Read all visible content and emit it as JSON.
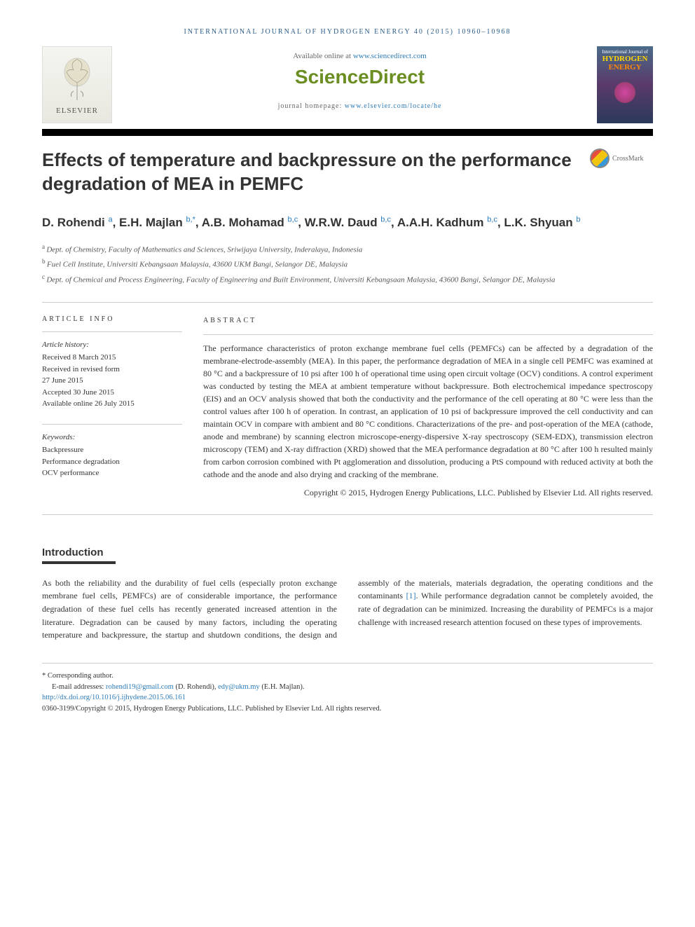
{
  "journal_header": "INTERNATIONAL JOURNAL OF HYDROGEN ENERGY 40 (2015) 10960–10968",
  "banner": {
    "available_prefix": "Available online at ",
    "available_url": "www.sciencedirect.com",
    "sciencedirect": "ScienceDirect",
    "homepage_prefix": "journal homepage: ",
    "homepage_url": "www.elsevier.com/locate/he",
    "elsevier_label": "ELSEVIER"
  },
  "cover": {
    "line1": "International Journal of",
    "line2": "HYDROGEN",
    "line3": "ENERGY"
  },
  "title": "Effects of temperature and backpressure on the performance degradation of MEA in PEMFC",
  "crossmark": "CrossMark",
  "authors_html_parts": [
    {
      "name": "D. Rohendi",
      "sup": "a"
    },
    {
      "name": "E.H. Majlan",
      "sup": "b,*"
    },
    {
      "name": "A.B. Mohamad",
      "sup": "b,c"
    },
    {
      "name": "W.R.W. Daud",
      "sup": "b,c"
    },
    {
      "name": "A.A.H. Kadhum",
      "sup": "b,c"
    },
    {
      "name": "L.K. Shyuan",
      "sup": "b"
    }
  ],
  "affiliations": [
    {
      "sup": "a",
      "text": "Dept. of Chemistry, Faculty of Mathematics and Sciences, Sriwijaya University, Inderalaya, Indonesia"
    },
    {
      "sup": "b",
      "text": "Fuel Cell Institute, Universiti Kebangsaan Malaysia, 43600 UKM Bangi, Selangor DE, Malaysia"
    },
    {
      "sup": "c",
      "text": "Dept. of Chemical and Process Engineering, Faculty of Engineering and Built Environment, Universiti Kebangsaan Malaysia, 43600 Bangi, Selangor DE, Malaysia"
    }
  ],
  "article_info": {
    "heading": "ARTICLE INFO",
    "history_label": "Article history:",
    "history": [
      "Received 8 March 2015",
      "Received in revised form",
      "27 June 2015",
      "Accepted 30 June 2015",
      "Available online 26 July 2015"
    ],
    "keywords_label": "Keywords:",
    "keywords": [
      "Backpressure",
      "Performance degradation",
      "OCV performance"
    ]
  },
  "abstract": {
    "heading": "ABSTRACT",
    "text": "The performance characteristics of proton exchange membrane fuel cells (PEMFCs) can be affected by a degradation of the membrane-electrode-assembly (MEA). In this paper, the performance degradation of MEA in a single cell PEMFC was examined at 80 °C and a backpressure of 10 psi after 100 h of operational time using open circuit voltage (OCV) conditions. A control experiment was conducted by testing the MEA at ambient temperature without backpressure. Both electrochemical impedance spectroscopy (EIS) and an OCV analysis showed that both the conductivity and the performance of the cell operating at 80 °C were less than the control values after 100 h of operation. In contrast, an application of 10 psi of backpressure improved the cell conductivity and can maintain OCV in compare with ambient and 80 °C conditions. Characterizations of the pre- and post-operation of the MEA (cathode, anode and membrane) by scanning electron microscope-energy-dispersive X-ray spectroscopy (SEM-EDX), transmission electron microscopy (TEM) and X-ray diffraction (XRD) showed that the MEA performance degradation at 80 °C after 100 h resulted mainly from carbon corrosion combined with Pt agglomeration and dissolution, producing a PtS compound with reduced activity at both the cathode and the anode and also drying and cracking of the membrane.",
    "copyright": "Copyright © 2015, Hydrogen Energy Publications, LLC. Published by Elsevier Ltd. All rights reserved."
  },
  "introduction": {
    "heading": "Introduction",
    "para1": "As both the reliability and the durability of fuel cells (especially proton exchange membrane fuel cells, PEMFCs) are of considerable importance, the performance degradation of these fuel cells has recently generated increased attention in the literature. Degradation can be caused by many factors,",
    "para2_before": "including the operating temperature and backpressure, the startup and shutdown conditions, the design and assembly of the materials, materials degradation, the operating conditions and the contaminants ",
    "ref": "[1]",
    "para2_after": ". While performance degradation cannot be completely avoided, the rate of degradation can be minimized. Increasing the durability of PEMFCs is a major challenge with increased research attention focused on these types of improvements."
  },
  "footer": {
    "corresponding": "* Corresponding author.",
    "email_label": "E-mail addresses: ",
    "email1": "rohendi19@gmail.com",
    "email1_name": " (D. Rohendi), ",
    "email2": "edy@ukm.my",
    "email2_name": " (E.H. Majlan).",
    "doi": "http://dx.doi.org/10.1016/j.ijhydene.2015.06.161",
    "issn": "0360-3199/Copyright © 2015, Hydrogen Energy Publications, LLC. Published by Elsevier Ltd. All rights reserved."
  },
  "colors": {
    "link": "#2b7bb9",
    "elsevier_orange": "#e67817",
    "sciencedirect_green": "#6b8e23"
  }
}
